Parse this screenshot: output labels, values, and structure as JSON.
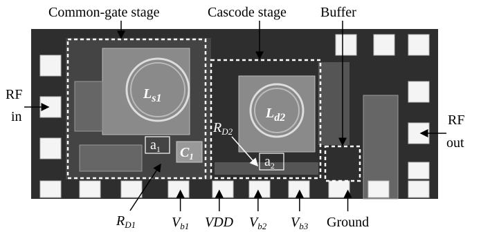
{
  "stage_labels": [
    "Common-gate stage",
    "Cascode stage",
    "Buffer"
  ],
  "ports": {
    "rf_in": [
      "RF",
      "in"
    ],
    "rf_out": [
      "RF",
      "out"
    ]
  },
  "components": {
    "ls1": {
      "main": "L",
      "sub": "s1"
    },
    "ld2": {
      "main": "L",
      "sub": "d2"
    },
    "c1": {
      "main": "C",
      "sub": "1"
    },
    "a1": {
      "main": "a",
      "sub": "1"
    },
    "a2": {
      "main": "a",
      "sub": "2"
    },
    "rd2": {
      "main": "R",
      "sub": "D2"
    },
    "rd1": {
      "main": "R",
      "sub": "D1"
    }
  },
  "pins": [
    {
      "main": "V",
      "sub": "b1"
    },
    {
      "main": "VDD"
    },
    {
      "main": "V",
      "sub": "b2"
    },
    {
      "main": "V",
      "sub": "b3"
    },
    {
      "main": "Ground"
    }
  ]
}
